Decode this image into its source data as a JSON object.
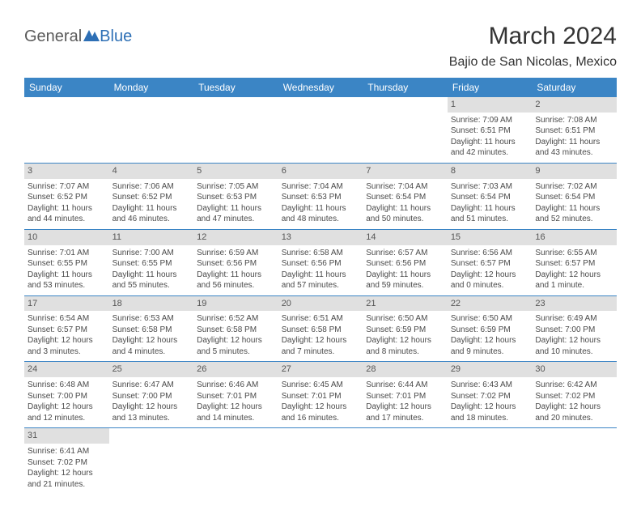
{
  "brand": {
    "part1": "General",
    "part2": "Blue"
  },
  "title": {
    "monthYear": "March 2024",
    "location": "Bajio de San Nicolas, Mexico"
  },
  "colors": {
    "headerBg": "#3b85c5",
    "headerText": "#ffffff",
    "dayNumBg": "#e0e0e0",
    "borderColor": "#3b85c5",
    "bodyText": "#4a4a4a",
    "titleText": "#333333",
    "logoGray": "#5a5a5a",
    "logoBlue": "#2d6fb5"
  },
  "dayHeaders": [
    "Sunday",
    "Monday",
    "Tuesday",
    "Wednesday",
    "Thursday",
    "Friday",
    "Saturday"
  ],
  "weeks": [
    [
      null,
      null,
      null,
      null,
      null,
      {
        "num": "1",
        "sunrise": "Sunrise: 7:09 AM",
        "sunset": "Sunset: 6:51 PM",
        "daylight1": "Daylight: 11 hours",
        "daylight2": "and 42 minutes."
      },
      {
        "num": "2",
        "sunrise": "Sunrise: 7:08 AM",
        "sunset": "Sunset: 6:51 PM",
        "daylight1": "Daylight: 11 hours",
        "daylight2": "and 43 minutes."
      }
    ],
    [
      {
        "num": "3",
        "sunrise": "Sunrise: 7:07 AM",
        "sunset": "Sunset: 6:52 PM",
        "daylight1": "Daylight: 11 hours",
        "daylight2": "and 44 minutes."
      },
      {
        "num": "4",
        "sunrise": "Sunrise: 7:06 AM",
        "sunset": "Sunset: 6:52 PM",
        "daylight1": "Daylight: 11 hours",
        "daylight2": "and 46 minutes."
      },
      {
        "num": "5",
        "sunrise": "Sunrise: 7:05 AM",
        "sunset": "Sunset: 6:53 PM",
        "daylight1": "Daylight: 11 hours",
        "daylight2": "and 47 minutes."
      },
      {
        "num": "6",
        "sunrise": "Sunrise: 7:04 AM",
        "sunset": "Sunset: 6:53 PM",
        "daylight1": "Daylight: 11 hours",
        "daylight2": "and 48 minutes."
      },
      {
        "num": "7",
        "sunrise": "Sunrise: 7:04 AM",
        "sunset": "Sunset: 6:54 PM",
        "daylight1": "Daylight: 11 hours",
        "daylight2": "and 50 minutes."
      },
      {
        "num": "8",
        "sunrise": "Sunrise: 7:03 AM",
        "sunset": "Sunset: 6:54 PM",
        "daylight1": "Daylight: 11 hours",
        "daylight2": "and 51 minutes."
      },
      {
        "num": "9",
        "sunrise": "Sunrise: 7:02 AM",
        "sunset": "Sunset: 6:54 PM",
        "daylight1": "Daylight: 11 hours",
        "daylight2": "and 52 minutes."
      }
    ],
    [
      {
        "num": "10",
        "sunrise": "Sunrise: 7:01 AM",
        "sunset": "Sunset: 6:55 PM",
        "daylight1": "Daylight: 11 hours",
        "daylight2": "and 53 minutes."
      },
      {
        "num": "11",
        "sunrise": "Sunrise: 7:00 AM",
        "sunset": "Sunset: 6:55 PM",
        "daylight1": "Daylight: 11 hours",
        "daylight2": "and 55 minutes."
      },
      {
        "num": "12",
        "sunrise": "Sunrise: 6:59 AM",
        "sunset": "Sunset: 6:56 PM",
        "daylight1": "Daylight: 11 hours",
        "daylight2": "and 56 minutes."
      },
      {
        "num": "13",
        "sunrise": "Sunrise: 6:58 AM",
        "sunset": "Sunset: 6:56 PM",
        "daylight1": "Daylight: 11 hours",
        "daylight2": "and 57 minutes."
      },
      {
        "num": "14",
        "sunrise": "Sunrise: 6:57 AM",
        "sunset": "Sunset: 6:56 PM",
        "daylight1": "Daylight: 11 hours",
        "daylight2": "and 59 minutes."
      },
      {
        "num": "15",
        "sunrise": "Sunrise: 6:56 AM",
        "sunset": "Sunset: 6:57 PM",
        "daylight1": "Daylight: 12 hours",
        "daylight2": "and 0 minutes."
      },
      {
        "num": "16",
        "sunrise": "Sunrise: 6:55 AM",
        "sunset": "Sunset: 6:57 PM",
        "daylight1": "Daylight: 12 hours",
        "daylight2": "and 1 minute."
      }
    ],
    [
      {
        "num": "17",
        "sunrise": "Sunrise: 6:54 AM",
        "sunset": "Sunset: 6:57 PM",
        "daylight1": "Daylight: 12 hours",
        "daylight2": "and 3 minutes."
      },
      {
        "num": "18",
        "sunrise": "Sunrise: 6:53 AM",
        "sunset": "Sunset: 6:58 PM",
        "daylight1": "Daylight: 12 hours",
        "daylight2": "and 4 minutes."
      },
      {
        "num": "19",
        "sunrise": "Sunrise: 6:52 AM",
        "sunset": "Sunset: 6:58 PM",
        "daylight1": "Daylight: 12 hours",
        "daylight2": "and 5 minutes."
      },
      {
        "num": "20",
        "sunrise": "Sunrise: 6:51 AM",
        "sunset": "Sunset: 6:58 PM",
        "daylight1": "Daylight: 12 hours",
        "daylight2": "and 7 minutes."
      },
      {
        "num": "21",
        "sunrise": "Sunrise: 6:50 AM",
        "sunset": "Sunset: 6:59 PM",
        "daylight1": "Daylight: 12 hours",
        "daylight2": "and 8 minutes."
      },
      {
        "num": "22",
        "sunrise": "Sunrise: 6:50 AM",
        "sunset": "Sunset: 6:59 PM",
        "daylight1": "Daylight: 12 hours",
        "daylight2": "and 9 minutes."
      },
      {
        "num": "23",
        "sunrise": "Sunrise: 6:49 AM",
        "sunset": "Sunset: 7:00 PM",
        "daylight1": "Daylight: 12 hours",
        "daylight2": "and 10 minutes."
      }
    ],
    [
      {
        "num": "24",
        "sunrise": "Sunrise: 6:48 AM",
        "sunset": "Sunset: 7:00 PM",
        "daylight1": "Daylight: 12 hours",
        "daylight2": "and 12 minutes."
      },
      {
        "num": "25",
        "sunrise": "Sunrise: 6:47 AM",
        "sunset": "Sunset: 7:00 PM",
        "daylight1": "Daylight: 12 hours",
        "daylight2": "and 13 minutes."
      },
      {
        "num": "26",
        "sunrise": "Sunrise: 6:46 AM",
        "sunset": "Sunset: 7:01 PM",
        "daylight1": "Daylight: 12 hours",
        "daylight2": "and 14 minutes."
      },
      {
        "num": "27",
        "sunrise": "Sunrise: 6:45 AM",
        "sunset": "Sunset: 7:01 PM",
        "daylight1": "Daylight: 12 hours",
        "daylight2": "and 16 minutes."
      },
      {
        "num": "28",
        "sunrise": "Sunrise: 6:44 AM",
        "sunset": "Sunset: 7:01 PM",
        "daylight1": "Daylight: 12 hours",
        "daylight2": "and 17 minutes."
      },
      {
        "num": "29",
        "sunrise": "Sunrise: 6:43 AM",
        "sunset": "Sunset: 7:02 PM",
        "daylight1": "Daylight: 12 hours",
        "daylight2": "and 18 minutes."
      },
      {
        "num": "30",
        "sunrise": "Sunrise: 6:42 AM",
        "sunset": "Sunset: 7:02 PM",
        "daylight1": "Daylight: 12 hours",
        "daylight2": "and 20 minutes."
      }
    ],
    [
      {
        "num": "31",
        "sunrise": "Sunrise: 6:41 AM",
        "sunset": "Sunset: 7:02 PM",
        "daylight1": "Daylight: 12 hours",
        "daylight2": "and 21 minutes."
      },
      null,
      null,
      null,
      null,
      null,
      null
    ]
  ]
}
